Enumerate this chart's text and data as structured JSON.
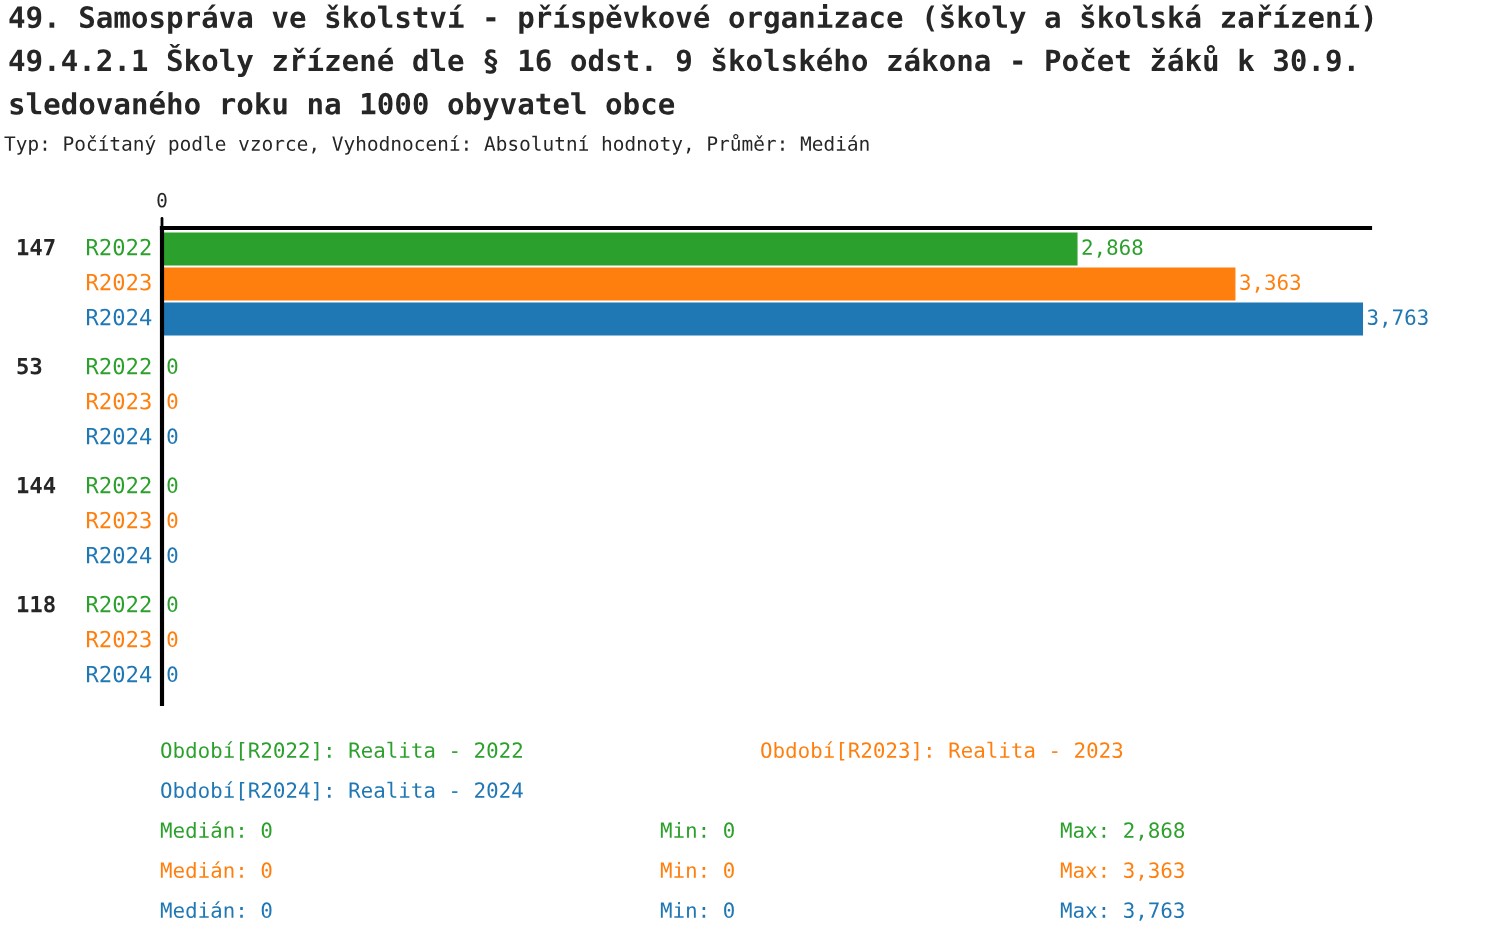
{
  "chart_data": {
    "type": "bar",
    "orientation": "horizontal",
    "title": "49. Samospráva ve školství - příspěvkové organizace (školy a školská zařízení)",
    "subtitle": "49.4.2.1 Školy zřízené dle § 16 odst. 9 školského zákona - Počet žáků k 30.9. sledovaného roku na 1000 obyvatel obce",
    "categories": [
      "147",
      "53",
      "144",
      "118"
    ],
    "series": [
      {
        "name": "R2022",
        "color": "#2ca02c",
        "values": [
          2868,
          0,
          0,
          0
        ],
        "value_labels": [
          "2,868",
          "0",
          "0",
          "0"
        ]
      },
      {
        "name": "R2023",
        "color": "#ff7f0e",
        "values": [
          3363,
          0,
          0,
          0
        ],
        "value_labels": [
          "3,363",
          "0",
          "0",
          "0"
        ]
      },
      {
        "name": "R2024",
        "color": "#1f77b4",
        "values": [
          3763,
          0,
          0,
          0
        ],
        "value_labels": [
          "3,763",
          "0",
          "0",
          "0"
        ]
      }
    ],
    "xlim": [
      0,
      3787
    ],
    "annotations": [
      {
        "text": "0",
        "x": 0
      },
      "Typ: Počítaný podle vzorce, Vyhodnocení: Absolutní hodnoty, Průměr: Medián",
      "Období[R2022]: Realita - 2022",
      "Období[R2023]: Realita - 2023",
      "Období[R2024]: Realita - 2024",
      "Medián: 0",
      "Min: 0",
      "Max: 2,868",
      "Medián: 0",
      "Min: 0",
      "Max: 3,363",
      "Medián: 0",
      "Min: 0",
      "Max: 3,763"
    ]
  }
}
